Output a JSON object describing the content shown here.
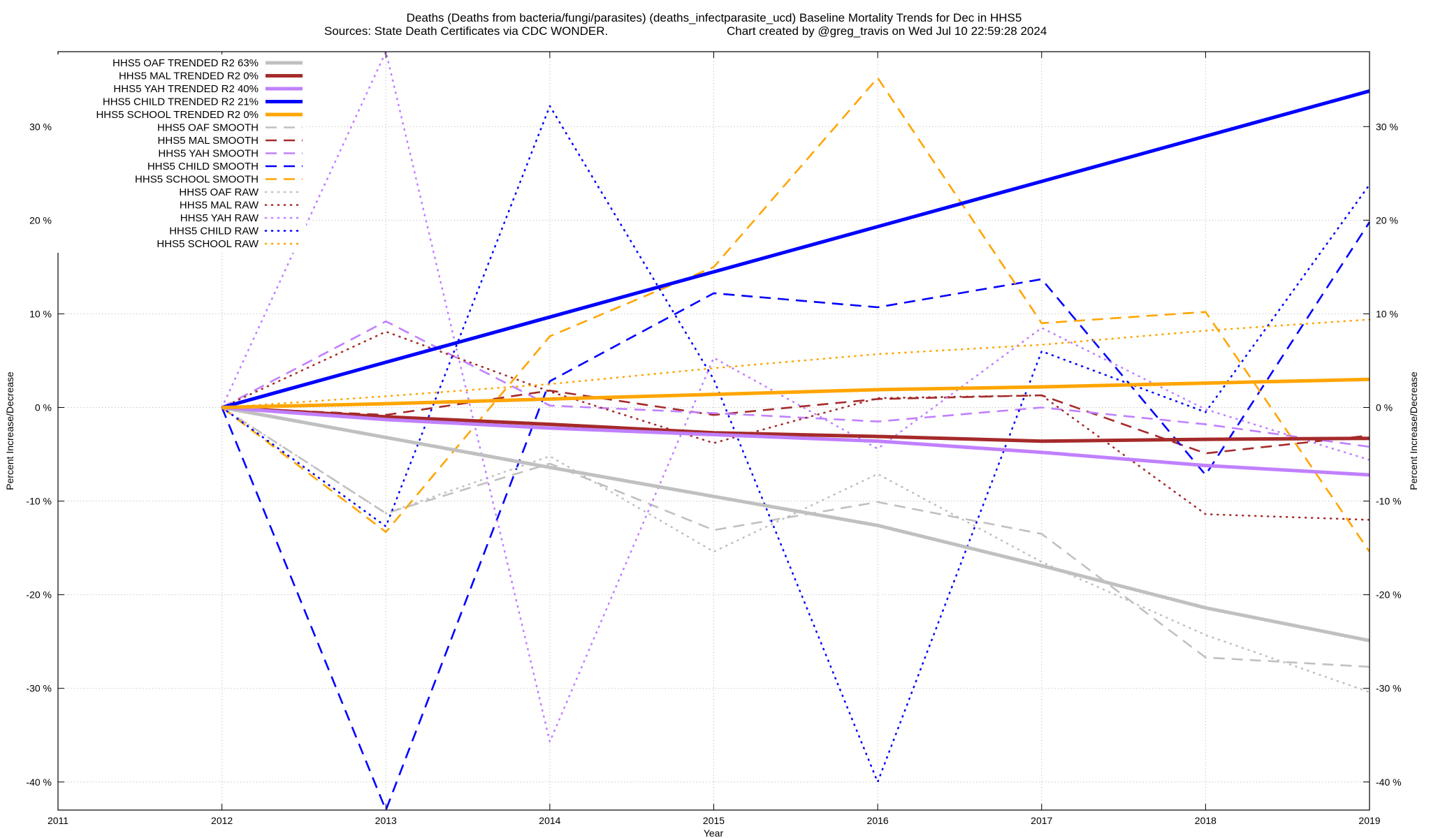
{
  "chart_data": {
    "type": "line",
    "title_line1": "Deaths (Deaths from bacteria/fungi/parasites) (deaths_infectparasite_ucd)  Baseline Mortality Trends for Dec in HHS5",
    "title_line2_left": "Sources: State Death Certificates via CDC WONDER.",
    "title_line2_right": "Chart created by @greg_travis on Wed Jul 10 22:59:28 2024",
    "xlabel": "Year",
    "ylabel_left": "Percent Increase/Decrease",
    "ylabel_right": "Percent Increase/Decrease",
    "xlim": [
      2011,
      2019
    ],
    "ylim": [
      -43,
      38
    ],
    "x_ticks": [
      "2011",
      "2012",
      "2013",
      "2014",
      "2015",
      "2016",
      "2017",
      "2018",
      "2019"
    ],
    "y_ticks": [
      {
        "value": 30,
        "label": "30 %"
      },
      {
        "value": 20,
        "label": "20 %"
      },
      {
        "value": 10,
        "label": "10 %"
      },
      {
        "value": 0,
        "label": "0 %"
      },
      {
        "value": -10,
        "label": "-10 %"
      },
      {
        "value": -20,
        "label": "-20 %"
      },
      {
        "value": -30,
        "label": "-30 %"
      },
      {
        "value": -40,
        "label": "-40 %"
      }
    ],
    "grid": true,
    "legend_position": "top-left",
    "series": [
      {
        "name": "HHS5 OAF TRENDED R2  63%",
        "style": "solid",
        "color": "#c0c0c0",
        "x": [
          2012,
          2013,
          2014,
          2015,
          2016,
          2017,
          2018,
          2019
        ],
        "y": [
          0,
          -3.2,
          -6.4,
          -9.5,
          -12.6,
          -16.9,
          -21.4,
          -24.9
        ]
      },
      {
        "name": "HHS5 MAL TRENDED R2   0%",
        "style": "solid",
        "color": "#a52a2a",
        "x": [
          2012,
          2013,
          2014,
          2015,
          2016,
          2017,
          2018,
          2019
        ],
        "y": [
          0,
          -1.0,
          -1.8,
          -2.7,
          -3.1,
          -3.6,
          -3.4,
          -3.3
        ]
      },
      {
        "name": "HHS5 YAH TRENDED R2  40%",
        "style": "solid",
        "color": "#c080ff",
        "x": [
          2012,
          2013,
          2014,
          2015,
          2016,
          2017,
          2018,
          2019
        ],
        "y": [
          0,
          -1.3,
          -2.2,
          -2.9,
          -3.6,
          -4.8,
          -6.2,
          -7.2
        ]
      },
      {
        "name": "HHS5 CHILD TRENDED R2  21%",
        "style": "solid",
        "color": "#0000ff",
        "x": [
          2012,
          2019
        ],
        "y": [
          0,
          33.8
        ]
      },
      {
        "name": "HHS5 SCHOOL TRENDED R2   0%",
        "style": "solid",
        "color": "#ffa500",
        "x": [
          2012,
          2013,
          2014,
          2015,
          2016,
          2017,
          2018,
          2019
        ],
        "y": [
          0,
          0.4,
          0.9,
          1.4,
          1.9,
          2.2,
          2.6,
          3.0
        ]
      },
      {
        "name": "HHS5 OAF SMOOTH",
        "style": "dashed",
        "color": "#c0c0c0",
        "x": [
          2012,
          2013,
          2014,
          2015,
          2016,
          2017,
          2018,
          2019
        ],
        "y": [
          0,
          -11.3,
          -6.0,
          -13.1,
          -10.1,
          -13.5,
          -26.7,
          -27.7
        ]
      },
      {
        "name": "HHS5 MAL SMOOTH",
        "style": "dashed",
        "color": "#a52a2a",
        "x": [
          2012,
          2013,
          2014,
          2015,
          2016,
          2017,
          2018,
          2019
        ],
        "y": [
          0,
          -0.8,
          1.8,
          -0.8,
          0.9,
          1.3,
          -4.9,
          -3.0
        ]
      },
      {
        "name": "HHS5 YAH SMOOTH",
        "style": "dashed",
        "color": "#c080ff",
        "x": [
          2012,
          2013,
          2014,
          2015,
          2016,
          2017,
          2018,
          2019
        ],
        "y": [
          0,
          9.2,
          0.2,
          -0.6,
          -1.5,
          0.0,
          -1.8,
          -4.2
        ]
      },
      {
        "name": "HHS5 CHILD SMOOTH",
        "style": "dashed",
        "color": "#0000ff",
        "x": [
          2012,
          2013,
          2014,
          2015,
          2016,
          2017,
          2018,
          2019
        ],
        "y": [
          0,
          -43.0,
          2.8,
          12.2,
          10.7,
          13.7,
          -7.2,
          19.8
        ]
      },
      {
        "name": "HHS5 SCHOOL SMOOTH",
        "style": "dashed",
        "color": "#ffa500",
        "x": [
          2012,
          2013,
          2014,
          2015,
          2016,
          2017,
          2018,
          2019
        ],
        "y": [
          0,
          -13.3,
          7.6,
          15.0,
          35.2,
          9.0,
          10.2,
          -15.4
        ]
      },
      {
        "name": "HHS5 OAF RAW",
        "style": "dotted",
        "color": "#c0c0c0",
        "x": [
          2012,
          2013,
          2014,
          2015,
          2016,
          2017,
          2018,
          2019
        ],
        "y": [
          0,
          -11.3,
          -5.2,
          -15.4,
          -7.1,
          -16.5,
          -24.3,
          -30.4
        ]
      },
      {
        "name": "HHS5 MAL RAW",
        "style": "dotted",
        "color": "#a52a2a",
        "x": [
          2012,
          2013,
          2014,
          2015,
          2016,
          2017,
          2018,
          2019
        ],
        "y": [
          0,
          8.1,
          1.7,
          -3.8,
          1.0,
          1.3,
          -11.4,
          -12.0
        ]
      },
      {
        "name": "HHS5 YAH RAW",
        "style": "dotted",
        "color": "#c080ff",
        "x": [
          2012,
          2013,
          2014,
          2015,
          2016,
          2017,
          2018,
          2019
        ],
        "y": [
          0,
          38.0,
          -35.7,
          5.3,
          -4.4,
          8.5,
          -0.2,
          -5.6
        ]
      },
      {
        "name": "HHS5 CHILD RAW",
        "style": "dotted",
        "color": "#0000ff",
        "x": [
          2012,
          2013,
          2014,
          2015,
          2016,
          2017,
          2018,
          2019
        ],
        "y": [
          0,
          -12.7,
          32.2,
          3.0,
          -40.0,
          6.0,
          -0.5,
          23.8
        ]
      },
      {
        "name": "HHS5 SCHOOL RAW",
        "style": "dotted",
        "color": "#ffa500",
        "x": [
          2012,
          2013,
          2014,
          2015,
          2016,
          2017,
          2018,
          2019
        ],
        "y": [
          0,
          1.2,
          2.5,
          4.2,
          5.7,
          6.7,
          8.2,
          9.4
        ]
      }
    ]
  }
}
